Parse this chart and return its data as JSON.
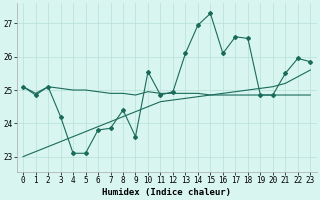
{
  "xlabel": "Humidex (Indice chaleur)",
  "x": [
    0,
    1,
    2,
    3,
    4,
    5,
    6,
    7,
    8,
    9,
    10,
    11,
    12,
    13,
    14,
    15,
    16,
    17,
    18,
    19,
    20,
    21,
    22,
    23
  ],
  "line1": [
    25.1,
    24.9,
    25.1,
    25.05,
    25.0,
    25.0,
    24.95,
    24.9,
    24.9,
    24.85,
    24.95,
    24.9,
    24.9,
    24.9,
    24.9,
    24.85,
    24.85,
    24.85,
    24.85,
    24.85,
    24.85,
    24.85,
    24.85,
    24.85
  ],
  "line2": [
    25.1,
    24.85,
    25.1,
    24.2,
    23.1,
    23.1,
    23.8,
    23.85,
    24.4,
    23.6,
    25.55,
    24.85,
    24.95,
    26.1,
    26.95,
    27.3,
    26.1,
    26.6,
    26.55,
    24.85,
    24.85,
    25.5,
    25.95,
    25.85
  ],
  "line3": [
    23.0,
    23.15,
    23.3,
    23.45,
    23.6,
    23.75,
    23.9,
    24.05,
    24.2,
    24.35,
    24.5,
    24.65,
    24.7,
    24.75,
    24.8,
    24.85,
    24.9,
    24.95,
    25.0,
    25.05,
    25.1,
    25.2,
    25.4,
    25.6
  ],
  "line_color": "#1a6b5a",
  "bg_color": "#d8f5f0",
  "grid_color": "#b8e0da",
  "ylim": [
    22.55,
    27.6
  ],
  "yticks": [
    23,
    24,
    25,
    26,
    27
  ],
  "marker": "D",
  "marker_size": 2.0,
  "line_width": 0.8,
  "tick_fontsize": 5.5,
  "xlabel_fontsize": 6.5
}
